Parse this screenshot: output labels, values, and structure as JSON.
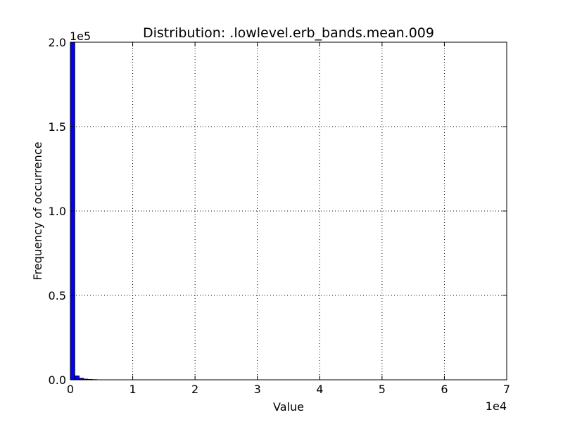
{
  "chart_data": {
    "type": "bar",
    "title": "Distribution: .lowlevel.erb_bands.mean.009",
    "xlabel": "Value",
    "ylabel": "Frequency of occurrence",
    "xlim": [
      0,
      70000
    ],
    "ylim": [
      0,
      200000
    ],
    "x_offset_label": "1e4",
    "y_offset_label": "1e5",
    "x_ticks": [
      0,
      10000,
      20000,
      30000,
      40000,
      50000,
      60000,
      70000
    ],
    "x_tick_labels": [
      "0",
      "1",
      "2",
      "3",
      "4",
      "5",
      "6",
      "7"
    ],
    "y_ticks": [
      0,
      50000,
      100000,
      150000,
      200000
    ],
    "y_tick_labels": [
      "0.0",
      "0.5",
      "1.0",
      "1.5",
      "2.0"
    ],
    "grid": true,
    "bar_color": "#0000ff",
    "bins": [
      {
        "x0": 0,
        "x1": 700,
        "count": 200000
      },
      {
        "x0": 700,
        "x1": 1400,
        "count": 2300
      },
      {
        "x0": 1400,
        "x1": 2100,
        "count": 900
      },
      {
        "x0": 2100,
        "x1": 2800,
        "count": 400
      },
      {
        "x0": 2800,
        "x1": 3500,
        "count": 200
      },
      {
        "x0": 3500,
        "x1": 4200,
        "count": 100
      }
    ]
  }
}
